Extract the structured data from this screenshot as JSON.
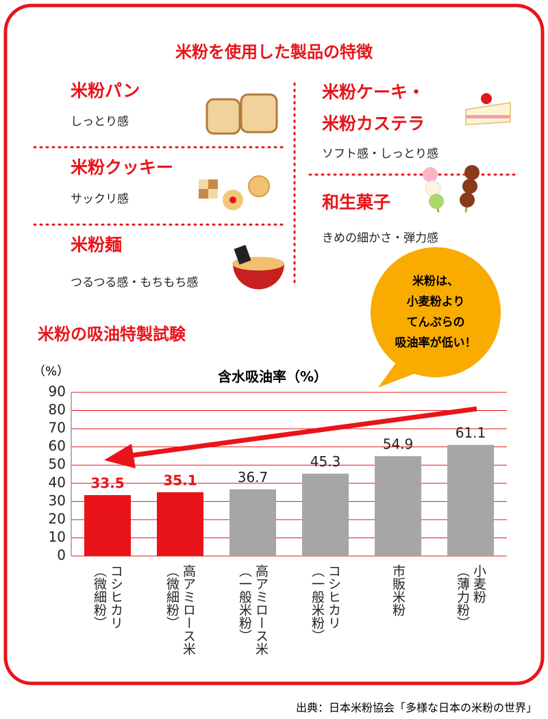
{
  "products": {
    "title": "米粉を使用した製品の特徴",
    "items": [
      {
        "name": "米粉パン",
        "desc": "しっとり感"
      },
      {
        "name": "米粉クッキー",
        "desc": "サックリ感"
      },
      {
        "name": "米粉麺",
        "desc": "つるつる感・もちもち感"
      },
      {
        "name": "米粉ケーキ・\n米粉カステラ",
        "desc": "ソフト感・しっとり感"
      },
      {
        "name": "和生菓子",
        "desc": "きめの細かさ・弾力感"
      }
    ]
  },
  "chart_data": {
    "type": "bar",
    "title": "米粉の吸油特製試験",
    "subtitle": "含水吸油率（%）",
    "y_label": "（%）",
    "categories": [
      "コシヒカリ\n（微細粉）",
      "高アミロース米\n（微細粉）",
      "高アミロース米\n（一般米粉）",
      "コシヒカリ\n（一般米粉）",
      "市販米粉",
      "小麦粉\n（薄力粉）"
    ],
    "values": [
      33.5,
      35.1,
      36.7,
      45.3,
      54.9,
      61.1
    ],
    "colors": [
      "#e8141a",
      "#e8141a",
      "#a6a6a6",
      "#a6a6a6",
      "#a6a6a6",
      "#a6a6a6"
    ],
    "label_colors": [
      "#e8141a",
      "#e8141a",
      "#222222",
      "#222222",
      "#222222",
      "#222222"
    ],
    "ylim": [
      0,
      90
    ],
    "yticks": [
      0,
      10,
      20,
      30,
      40,
      50,
      60,
      70,
      80,
      90
    ],
    "grid": true,
    "annotation": "米粉は、\n小麦粉より\nてんぷらの\n吸油率が低い！"
  },
  "source": "出典：日本米粉協会「多様な日本の米粉の世界」"
}
